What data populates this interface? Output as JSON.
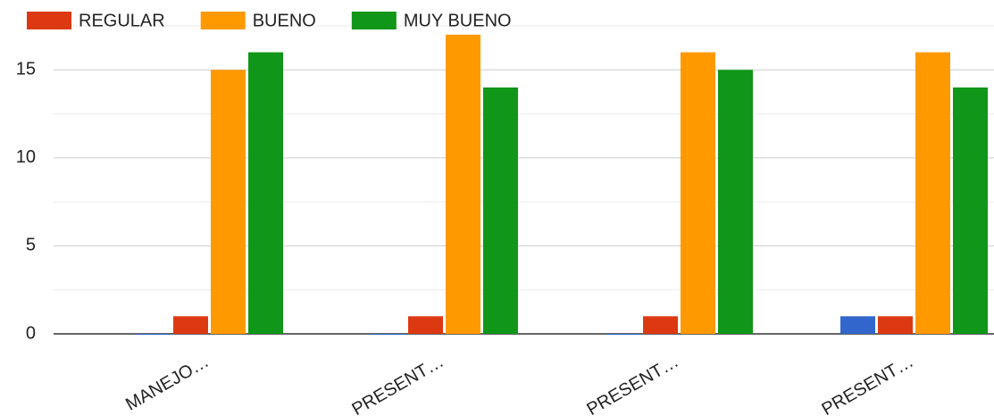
{
  "chart_data": {
    "type": "bar",
    "categories": [
      "MANEJO…",
      "PRESENT…",
      "PRESENT…",
      "PRESENT…"
    ],
    "series": [
      {
        "color": "#3366cc",
        "values": [
          0,
          0,
          0,
          1
        ]
      },
      {
        "name": "REGULAR",
        "color": "#dc3912",
        "values": [
          1,
          1,
          1,
          1
        ]
      },
      {
        "name": "BUENO",
        "color": "#ff9900",
        "values": [
          15,
          17,
          16,
          16
        ]
      },
      {
        "name": "MUY BUENO",
        "color": "#109618",
        "values": [
          16,
          14,
          15,
          14
        ]
      }
    ],
    "ylim": [
      0,
      17.5
    ],
    "yticks": [
      0,
      5,
      10,
      15
    ],
    "grid": true,
    "legend": "top"
  }
}
